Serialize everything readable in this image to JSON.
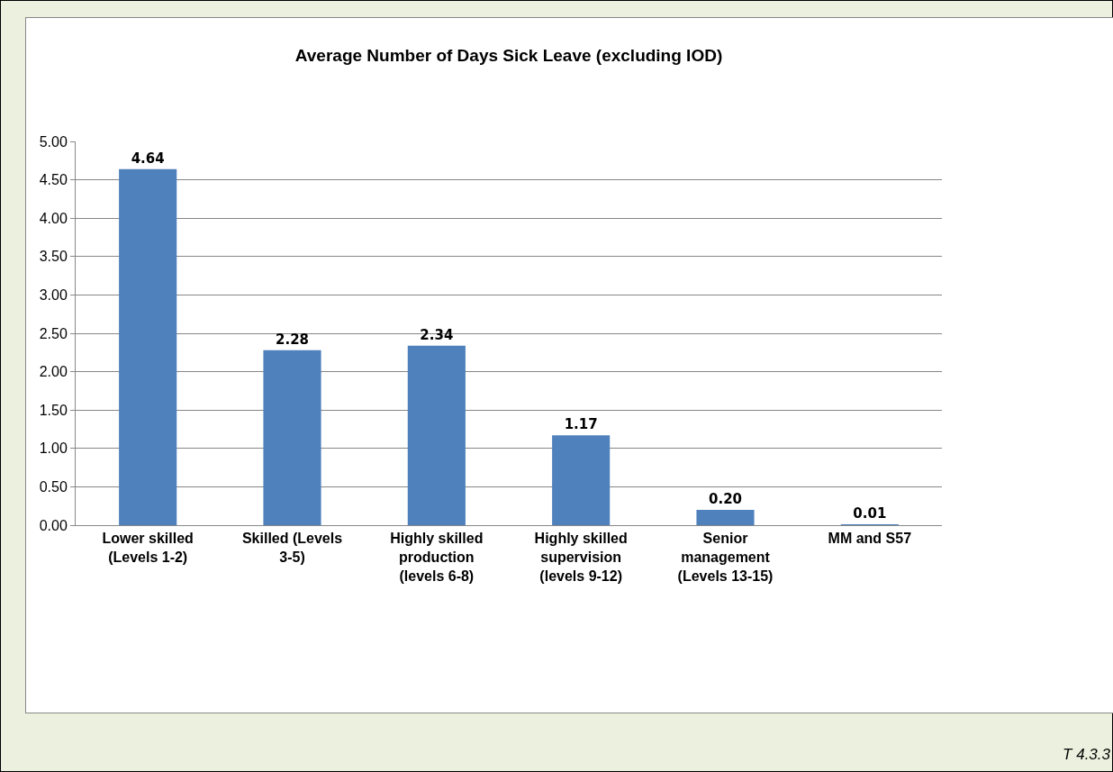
{
  "chart_data": {
    "type": "bar",
    "title": "Average Number of Days Sick Leave (excluding IOD)",
    "categories": [
      "Lower skilled (Levels 1-2)",
      "Skilled (Levels 3-5)",
      "Highly skilled production (levels 6-8)",
      "Highly skilled supervision (levels 9-12)",
      "Senior management (Levels 13-15)",
      "MM and S57"
    ],
    "values": [
      4.64,
      2.28,
      2.34,
      1.17,
      0.2,
      0.01
    ],
    "value_labels": [
      "4.64",
      "2.28",
      "2.34",
      "1.17",
      "0.20",
      "0.01"
    ],
    "color": "#4f81bd",
    "ylim": [
      0,
      5
    ],
    "yticks": [
      {
        "value": 0,
        "label": "0.00"
      },
      {
        "value": 0.5,
        "label": "0.50"
      },
      {
        "value": 1,
        "label": "1.00"
      },
      {
        "value": 1.5,
        "label": "1.50"
      },
      {
        "value": 2,
        "label": "2.00"
      },
      {
        "value": 2.5,
        "label": "2.50"
      },
      {
        "value": 3,
        "label": "3.00"
      },
      {
        "value": 3.5,
        "label": "3.50"
      },
      {
        "value": 4,
        "label": "4.00"
      },
      {
        "value": 4.5,
        "label": "4.50"
      },
      {
        "value": 5,
        "label": "5.00"
      }
    ],
    "grid": "y",
    "annotations": [
      "T 4.3.3"
    ]
  }
}
